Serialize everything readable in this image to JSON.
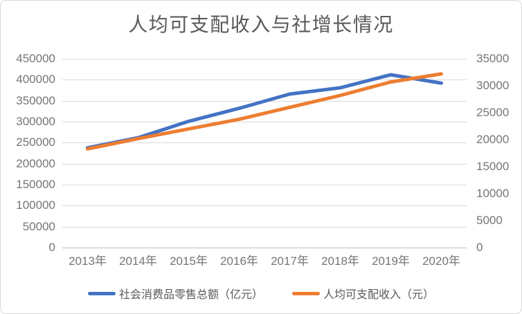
{
  "chart_data": {
    "type": "line",
    "title": "人均可支配收入与社增长情况",
    "categories": [
      "2013年",
      "2014年",
      "2015年",
      "2016年",
      "2017年",
      "2018年",
      "2019年",
      "2020年"
    ],
    "series": [
      {
        "name": "社会消费品零售总额（亿元）",
        "axis": "left",
        "color": "#4472C4",
        "values": [
          238000,
          262000,
          301000,
          332000,
          366000,
          381000,
          412000,
          392000
        ]
      },
      {
        "name": "人均可支配收入（元）",
        "axis": "right",
        "color": "#ED7D31",
        "values": [
          18300,
          20200,
          22000,
          23800,
          26000,
          28200,
          30700,
          32200
        ]
      }
    ],
    "left_axis": {
      "min": 0,
      "max": 450000,
      "step": 50000,
      "ticks": [
        0,
        50000,
        100000,
        150000,
        200000,
        250000,
        300000,
        350000,
        400000,
        450000
      ]
    },
    "right_axis": {
      "min": 0,
      "max": 35000,
      "step": 5000,
      "ticks": [
        0,
        5000,
        10000,
        15000,
        20000,
        25000,
        30000,
        35000
      ]
    },
    "grid": true,
    "legend_position": "bottom",
    "colors": {
      "gridline": "#d9d9d9",
      "axis_line": "#bfbfbf",
      "axis_text": "#757575",
      "title_text": "#595959",
      "series_blue": "#4472C4",
      "series_orange": "#ED7D31"
    }
  }
}
